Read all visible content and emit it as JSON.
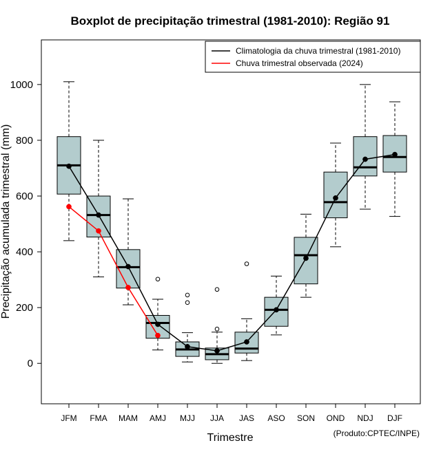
{
  "chart_data": {
    "type": "boxplot",
    "title": "Boxplot de precipitação trimestral (1981-2010): Região 91",
    "xlabel": "Trimestre",
    "ylabel": "Precipitação acumulada trimestral (mm)",
    "credit": "(Produto:CPTEC/INPE)",
    "ylim": [
      -145,
      1160
    ],
    "yticks": [
      0,
      200,
      400,
      600,
      800,
      1000
    ],
    "categories": [
      "JFM",
      "FMA",
      "MAM",
      "AMJ",
      "MJJ",
      "JJA",
      "JAS",
      "ASO",
      "SON",
      "OND",
      "NDJ",
      "DJF"
    ],
    "boxes": [
      {
        "min": 440,
        "q1": 607,
        "median": 710,
        "q3": 813,
        "max": 1010,
        "outliers": []
      },
      {
        "min": 310,
        "q1": 453,
        "median": 532,
        "q3": 600,
        "max": 800,
        "outliers": []
      },
      {
        "min": 210,
        "q1": 270,
        "median": 345,
        "q3": 408,
        "max": 590,
        "outliers": []
      },
      {
        "min": 48,
        "q1": 90,
        "median": 145,
        "q3": 172,
        "max": 230,
        "outliers": [
          302
        ]
      },
      {
        "min": 5,
        "q1": 25,
        "median": 50,
        "q3": 77,
        "max": 110,
        "outliers": [
          218,
          245
        ]
      },
      {
        "min": 0,
        "q1": 13,
        "median": 33,
        "q3": 55,
        "max": 112,
        "outliers": [
          123,
          265
        ]
      },
      {
        "min": 10,
        "q1": 37,
        "median": 53,
        "q3": 112,
        "max": 160,
        "outliers": [
          357
        ]
      },
      {
        "min": 102,
        "q1": 133,
        "median": 192,
        "q3": 237,
        "max": 313,
        "outliers": []
      },
      {
        "min": 237,
        "q1": 285,
        "median": 388,
        "q3": 452,
        "max": 535,
        "outliers": []
      },
      {
        "min": 418,
        "q1": 522,
        "median": 578,
        "q3": 686,
        "max": 790,
        "outliers": []
      },
      {
        "min": 553,
        "q1": 672,
        "median": 703,
        "q3": 813,
        "max": 1000,
        "outliers": []
      },
      {
        "min": 527,
        "q1": 686,
        "median": 740,
        "q3": 817,
        "max": 938,
        "outliers": []
      }
    ],
    "series": [
      {
        "name": "Climatologia da chuva trimestral (1981-2010)",
        "color": "#000000",
        "values": [
          707,
          532,
          347,
          140,
          60,
          45,
          77,
          192,
          377,
          593,
          732,
          749
        ]
      },
      {
        "name": "Chuva trimestral observada (2024)",
        "color": "#ff0000",
        "values": [
          562,
          475,
          272,
          100,
          null,
          null,
          null,
          null,
          null,
          null,
          null,
          null
        ]
      }
    ],
    "box_color": "#b3cccd",
    "legend_position": "top-right"
  }
}
